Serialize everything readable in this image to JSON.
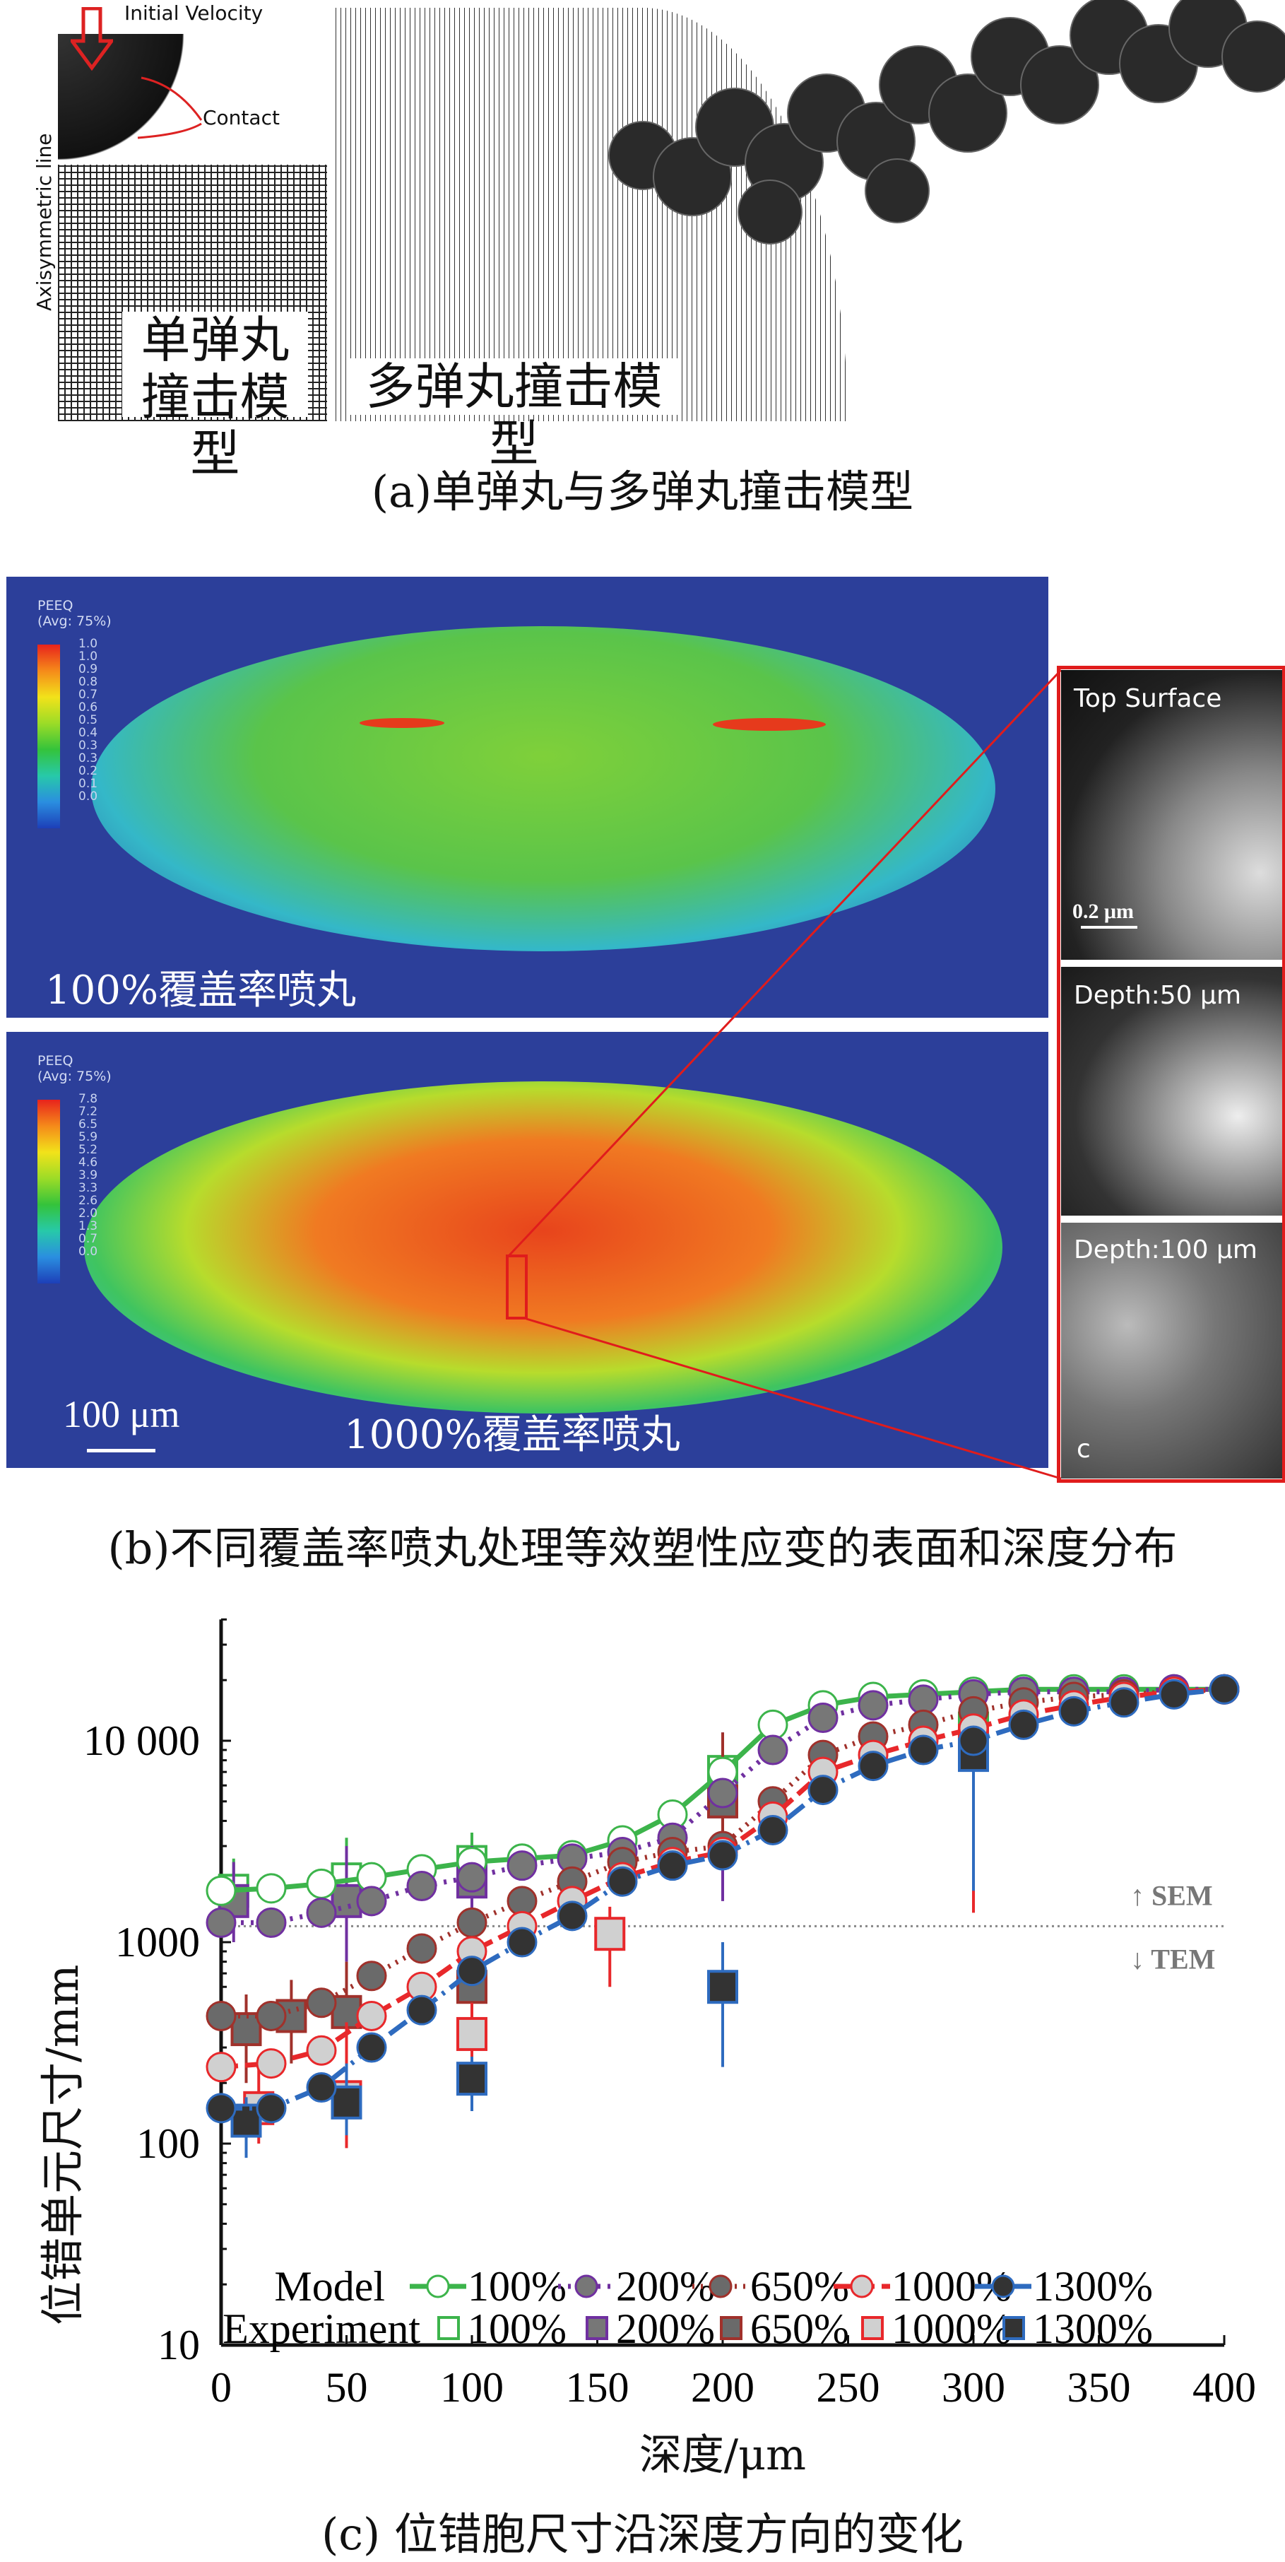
{
  "panel_a": {
    "single_labels": {
      "velocity": "Initial Velocity",
      "contact": "Contact",
      "axis": "Axisymmetric line"
    },
    "single_title_line1": "单弹丸",
    "single_title_line2": "撞击模型",
    "multi_title": "多弹丸撞击模型",
    "caption": "(a)单弹丸与多弹丸撞击模型"
  },
  "panel_b": {
    "top": {
      "legend_title": "PEEQ",
      "legend_avg": "(Avg: 75%)",
      "legend_values": [
        "1.0",
        "1.0",
        "0.9",
        "0.8",
        "0.7",
        "0.6",
        "0.5",
        "0.4",
        "0.3",
        "0.3",
        "0.2",
        "0.1",
        "0.0"
      ],
      "label": "100%覆盖率喷丸"
    },
    "bottom": {
      "legend_title": "PEEQ",
      "legend_avg": "(Avg: 75%)",
      "legend_values": [
        "7.8",
        "7.2",
        "6.5",
        "5.9",
        "5.2",
        "4.6",
        "3.9",
        "3.3",
        "2.6",
        "2.0",
        "1.3",
        "0.7",
        "0.0"
      ],
      "label": "1000%覆盖率喷丸",
      "scale_bar": "100 μm"
    },
    "tem": {
      "top": "Top Surface",
      "top_scale": "0.2 μm",
      "mid": "Depth:50 μm",
      "bottom": "Depth:100 μm",
      "bottom_corner": "c"
    },
    "caption": "(b)不同覆盖率喷丸处理等效塑性应变的表面和深度分布"
  },
  "chart_data": {
    "type": "line",
    "xlabel": "深度/μm",
    "ylabel": "位错单元尺寸/mm",
    "xlim": [
      0,
      400
    ],
    "ylim": [
      10,
      40000
    ],
    "yscale": "log",
    "x_ticks": [
      "0",
      "50",
      "100",
      "150",
      "200",
      "250",
      "300",
      "350",
      "400"
    ],
    "y_ticks": [
      {
        "v": 10,
        "label": "10"
      },
      {
        "v": 100,
        "label": "100"
      },
      {
        "v": 1000,
        "label": "1000"
      },
      {
        "v": 10000,
        "label": "10 000"
      }
    ],
    "threshold": {
      "value": 1200,
      "above": "↑ SEM",
      "below": "↓ TEM"
    },
    "legend": {
      "model_label": "Model",
      "experiment_label": "Experiment",
      "placement": "bottom-right"
    },
    "x": [
      0,
      20,
      40,
      60,
      80,
      100,
      120,
      140,
      160,
      180,
      200,
      220,
      240,
      260,
      280,
      300,
      320,
      340,
      360,
      380,
      400
    ],
    "model_series": [
      {
        "name": "100%",
        "color": "#3cb44b",
        "dash": "",
        "fill": "#ffffff",
        "values": [
          1800,
          1850,
          1950,
          2100,
          2300,
          2500,
          2600,
          2700,
          3200,
          4300,
          7000,
          12000,
          15000,
          16500,
          17000,
          17500,
          18000,
          18000,
          18000,
          18000,
          18000
        ]
      },
      {
        "name": "200%",
        "color": "#7030a0",
        "dash": "4 10",
        "fill": "#777777",
        "values": [
          1250,
          1250,
          1400,
          1600,
          1900,
          2100,
          2400,
          2600,
          2800,
          3300,
          5500,
          9000,
          13000,
          15000,
          16000,
          17000,
          17500,
          17500,
          17500,
          18000,
          18000
        ]
      },
      {
        "name": "650%",
        "color": "#a0312b",
        "dash": "3 9",
        "fill": "#6a6a6a",
        "values": [
          430,
          430,
          500,
          680,
          930,
          1250,
          1600,
          2000,
          2500,
          2800,
          3000,
          5000,
          8500,
          10500,
          12000,
          14000,
          15500,
          16500,
          17000,
          17500,
          18000
        ]
      },
      {
        "name": "1000%",
        "color": "#e8282b",
        "dash": "24 10",
        "fill": "#d0d0d0",
        "values": [
          240,
          250,
          290,
          430,
          600,
          900,
          1200,
          1600,
          2100,
          2500,
          2800,
          4200,
          7000,
          8500,
          10000,
          11500,
          13500,
          15000,
          16500,
          17500,
          18000
        ]
      },
      {
        "name": "1300%",
        "color": "#2e6bbf",
        "dash": "30 10 4 10",
        "fill": "#333333",
        "values": [
          150,
          150,
          190,
          300,
          460,
          720,
          1000,
          1350,
          2000,
          2400,
          2700,
          3600,
          5700,
          7500,
          9000,
          10000,
          12000,
          14000,
          15500,
          17000,
          18000
        ]
      }
    ],
    "experiment_series": [
      {
        "name": "100%",
        "color": "#3cb44b",
        "fill": "#ffffff",
        "points": [
          [
            5,
            1800,
            1200,
            2600
          ],
          [
            50,
            2050,
            1200,
            3300
          ],
          [
            100,
            2500,
            1800,
            3500
          ],
          [
            200,
            7000,
            5000,
            9000
          ],
          [
            300,
            11500,
            9000,
            13000
          ]
        ]
      },
      {
        "name": "200%",
        "color": "#7030a0",
        "fill": "#777777",
        "points": [
          [
            5,
            1600,
            1000,
            2500
          ],
          [
            50,
            1600,
            800,
            3000
          ],
          [
            100,
            2000,
            1300,
            3000
          ],
          [
            200,
            5000,
            1600,
            11000
          ]
        ]
      },
      {
        "name": "650%",
        "color": "#a0312b",
        "fill": "#6a6a6a",
        "points": [
          [
            10,
            370,
            200,
            550
          ],
          [
            28,
            430,
            250,
            650
          ],
          [
            50,
            450,
            250,
            800
          ],
          [
            100,
            600,
            400,
            900
          ],
          [
            200,
            5000,
            2500,
            11000
          ]
        ]
      },
      {
        "name": "1000%",
        "color": "#e8282b",
        "fill": "#d0d0d0",
        "points": [
          [
            15,
            150,
            100,
            250
          ],
          [
            50,
            170,
            95,
            400
          ],
          [
            100,
            350,
            200,
            500
          ],
          [
            155,
            1100,
            600,
            1500
          ],
          [
            300,
            10000,
            1400,
            12000
          ]
        ]
      },
      {
        "name": "1300%",
        "color": "#2e6bbf",
        "fill": "#333333",
        "points": [
          [
            10,
            130,
            85,
            170
          ],
          [
            50,
            160,
            110,
            250
          ],
          [
            100,
            210,
            145,
            270
          ],
          [
            200,
            600,
            240,
            1000
          ],
          [
            300,
            8500,
            1800,
            10000
          ]
        ]
      }
    ],
    "caption": "(c) 位错胞尺寸沿深度方向的变化"
  }
}
